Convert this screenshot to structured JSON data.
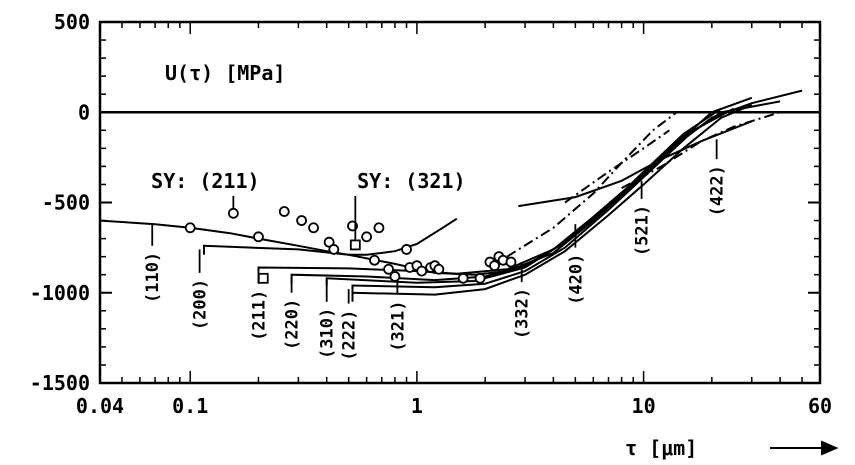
{
  "chart_data": {
    "type": "line",
    "title": "",
    "inner_label": "U(τ) [MPa]",
    "xlabel": "τ [μm]",
    "ylabel": "",
    "x_scale": "log",
    "xlim": [
      0.04,
      60
    ],
    "ylim": [
      -1500,
      500
    ],
    "x_ticks": [
      {
        "value": 0.04,
        "label": "0.04"
      },
      {
        "value": 0.1,
        "label": "0.1"
      },
      {
        "value": 1,
        "label": "1"
      },
      {
        "value": 10,
        "label": "10"
      },
      {
        "value": 60,
        "label": "60"
      }
    ],
    "y_ticks": [
      {
        "value": 500,
        "label": "500"
      },
      {
        "value": 0,
        "label": "0"
      },
      {
        "value": -500,
        "label": "-500"
      },
      {
        "value": -1000,
        "label": "-1000"
      },
      {
        "value": -1500,
        "label": "-1500"
      }
    ],
    "reference_line": 0,
    "series": [
      {
        "dash": "solid",
        "points": [
          [
            0.04,
            -600
          ],
          [
            0.07,
            -620
          ],
          [
            0.1,
            -640
          ],
          [
            0.15,
            -670
          ],
          [
            0.2,
            -700
          ],
          [
            0.3,
            -740
          ],
          [
            0.4,
            -770
          ],
          [
            0.5,
            -790
          ],
          [
            0.6,
            -790
          ],
          [
            0.8,
            -770
          ],
          [
            1.0,
            -730
          ],
          [
            1.3,
            -640
          ],
          [
            1.5,
            -590
          ]
        ]
      },
      {
        "dash": "solid",
        "points": [
          [
            0.115,
            -790
          ],
          [
            0.115,
            -740
          ],
          [
            0.3,
            -760
          ],
          [
            0.5,
            -790
          ],
          [
            0.8,
            -840
          ],
          [
            1.2,
            -890
          ],
          [
            1.8,
            -900
          ],
          [
            2.5,
            -880
          ],
          [
            4,
            -780
          ],
          [
            6,
            -600
          ],
          [
            10,
            -350
          ],
          [
            15,
            -150
          ],
          [
            20,
            -30
          ],
          [
            30,
            50
          ],
          [
            50,
            120
          ]
        ]
      },
      {
        "dash": "solid",
        "points": [
          [
            0.2,
            -880
          ],
          [
            0.2,
            -860
          ],
          [
            0.5,
            -865
          ],
          [
            1.0,
            -880
          ],
          [
            1.5,
            -895
          ],
          [
            2.5,
            -870
          ],
          [
            4,
            -760
          ],
          [
            6,
            -580
          ],
          [
            10,
            -340
          ],
          [
            15,
            -140
          ],
          [
            20,
            0
          ],
          [
            30,
            80
          ]
        ]
      },
      {
        "dash": "solid",
        "points": [
          [
            0.28,
            -950
          ],
          [
            0.28,
            -900
          ],
          [
            0.6,
            -910
          ],
          [
            1.2,
            -930
          ],
          [
            2,
            -910
          ],
          [
            3,
            -850
          ],
          [
            4.5,
            -720
          ],
          [
            7,
            -520
          ],
          [
            10,
            -330
          ],
          [
            15,
            -120
          ],
          [
            22,
            20
          ]
        ]
      },
      {
        "dash": "solid",
        "points": [
          [
            0.4,
            -960
          ],
          [
            0.4,
            -920
          ],
          [
            1.0,
            -945
          ],
          [
            1.8,
            -935
          ],
          [
            3,
            -860
          ],
          [
            4.5,
            -720
          ],
          [
            7,
            -520
          ],
          [
            10,
            -330
          ],
          [
            15,
            -130
          ],
          [
            25,
            20
          ]
        ]
      },
      {
        "dash": "solid",
        "points": [
          [
            0.52,
            -1000
          ],
          [
            0.52,
            -960
          ],
          [
            1.2,
            -970
          ],
          [
            2,
            -950
          ],
          [
            3,
            -880
          ],
          [
            4.5,
            -750
          ],
          [
            7,
            -540
          ],
          [
            10,
            -360
          ],
          [
            16,
            -120
          ],
          [
            22,
            0
          ],
          [
            40,
            60
          ]
        ]
      },
      {
        "dash": "solid",
        "points": [
          [
            0.52,
            -1050
          ],
          [
            0.52,
            -1000
          ],
          [
            1.2,
            -1010
          ],
          [
            2,
            -980
          ],
          [
            3,
            -900
          ],
          [
            4.5,
            -770
          ],
          [
            7,
            -570
          ],
          [
            10,
            -400
          ],
          [
            15,
            -200
          ],
          [
            22,
            -30
          ],
          [
            30,
            40
          ]
        ]
      },
      {
        "dash": "solid",
        "points": [
          [
            2.8,
            -520
          ],
          [
            5,
            -470
          ],
          [
            8,
            -380
          ],
          [
            12,
            -260
          ],
          [
            18,
            -160
          ],
          [
            30,
            -50
          ]
        ]
      },
      {
        "dash": "dashdot",
        "points": [
          [
            2.5,
            -800
          ],
          [
            4,
            -640
          ],
          [
            6,
            -450
          ],
          [
            8,
            -280
          ],
          [
            11,
            -100
          ],
          [
            14,
            0
          ]
        ]
      },
      {
        "dash": "dashdot",
        "points": [
          [
            8,
            -420
          ],
          [
            12,
            -300
          ],
          [
            18,
            -160
          ],
          [
            25,
            -80
          ],
          [
            40,
            0
          ]
        ]
      },
      {
        "dash": "dashdot",
        "points": [
          [
            4.5,
            -500
          ],
          [
            7,
            -330
          ],
          [
            10,
            -200
          ],
          [
            13,
            -100
          ]
        ]
      }
    ],
    "circle_points": [
      [
        0.1,
        -640
      ],
      [
        0.155,
        -560
      ],
      [
        0.2,
        -690
      ],
      [
        0.26,
        -550
      ],
      [
        0.31,
        -600
      ],
      [
        0.35,
        -640
      ],
      [
        0.41,
        -720
      ],
      [
        0.43,
        -760
      ],
      [
        0.52,
        -630
      ],
      [
        0.6,
        -690
      ],
      [
        0.65,
        -820
      ],
      [
        0.68,
        -640
      ],
      [
        0.75,
        -870
      ],
      [
        0.8,
        -910
      ],
      [
        0.9,
        -760
      ],
      [
        0.93,
        -860
      ],
      [
        1.0,
        -850
      ],
      [
        1.05,
        -880
      ],
      [
        1.15,
        -860
      ],
      [
        1.2,
        -850
      ],
      [
        1.25,
        -870
      ],
      [
        1.6,
        -920
      ],
      [
        1.9,
        -920
      ],
      [
        2.1,
        -830
      ],
      [
        2.2,
        -850
      ],
      [
        2.3,
        -800
      ],
      [
        2.4,
        -820
      ],
      [
        2.6,
        -830
      ]
    ],
    "square_points": [
      [
        0.21,
        -920
      ],
      [
        0.535,
        -735
      ]
    ],
    "sy_labels": [
      {
        "label": "SY: (211)",
        "x": 0.155,
        "y": -560
      },
      {
        "label": "SY: (321)",
        "x": 0.535,
        "y": -735
      }
    ],
    "hkl_markers": [
      {
        "label": "(110)",
        "x": 0.068
      },
      {
        "label": "(200)",
        "x": 0.11
      },
      {
        "label": "(211)",
        "x": 0.2
      },
      {
        "label": "(220)",
        "x": 0.28
      },
      {
        "label": "(310)",
        "x": 0.4
      },
      {
        "label": "(222)",
        "x": 0.5
      },
      {
        "label": "(321)",
        "x": 0.82
      },
      {
        "label": "(332)",
        "x": 2.9
      },
      {
        "label": "(420)",
        "x": 5.0
      },
      {
        "label": "(521)",
        "x": 9.8
      },
      {
        "label": "(422)",
        "x": 21
      }
    ]
  }
}
